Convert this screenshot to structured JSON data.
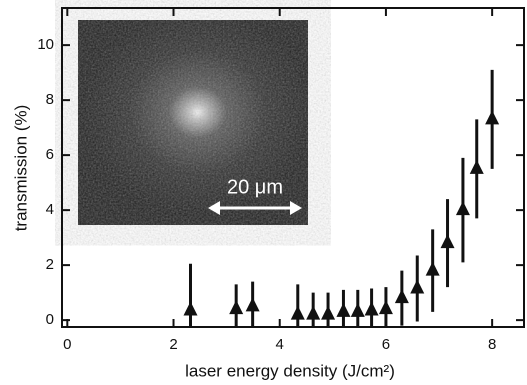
{
  "chart_data": {
    "type": "scatter",
    "xlabel": "laser energy density (J/cm²)",
    "ylabel": "transmission (%)",
    "inset_label": "20 μm",
    "x": [
      2.32,
      3.18,
      3.49,
      4.34,
      4.63,
      4.91,
      5.2,
      5.47,
      5.73,
      6.0,
      6.3,
      6.59,
      6.88,
      7.16,
      7.45,
      7.71,
      8.0
    ],
    "values": [
      0.35,
      0.4,
      0.5,
      0.2,
      0.2,
      0.2,
      0.3,
      0.3,
      0.35,
      0.4,
      0.8,
      1.15,
      1.8,
      2.8,
      4.0,
      5.5,
      7.3
    ],
    "errors": [
      1.7,
      0.9,
      0.9,
      1.1,
      0.8,
      0.8,
      0.8,
      0.8,
      0.8,
      0.8,
      1.0,
      1.2,
      1.5,
      1.6,
      1.9,
      1.8,
      1.8
    ],
    "color": "#111111",
    "xlim": [
      -0.1,
      8.6
    ],
    "ylim": [
      -0.25,
      11.35
    ],
    "xticks": [
      0,
      2,
      4,
      6,
      8
    ],
    "yticks": [
      0,
      2,
      4,
      6,
      8,
      10
    ]
  }
}
